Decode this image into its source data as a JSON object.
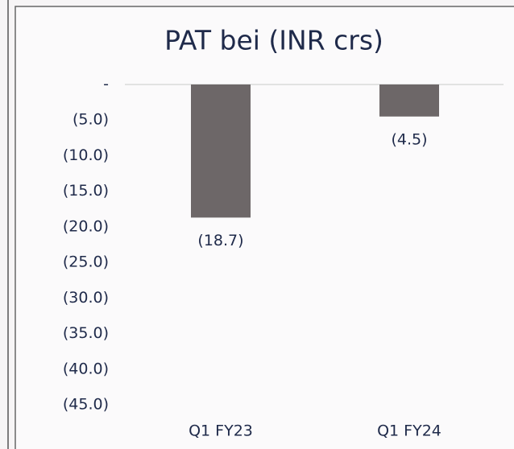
{
  "chart_data": {
    "type": "bar",
    "title": "PAT bei (INR crs)",
    "categories": [
      "Q1 FY23",
      "Q1 FY24"
    ],
    "values": [
      -18.7,
      -4.5
    ],
    "value_labels": [
      "(18.7)",
      "(4.5)"
    ],
    "color": "#6d6768",
    "ylim": [
      -45,
      0
    ],
    "yticks": [
      {
        "value": 0,
        "label": "-"
      },
      {
        "value": -5,
        "label": "(5.0)"
      },
      {
        "value": -10,
        "label": "(10.0)"
      },
      {
        "value": -15,
        "label": "(15.0)"
      },
      {
        "value": -20,
        "label": "(20.0)"
      },
      {
        "value": -25,
        "label": "(25.0)"
      },
      {
        "value": -30,
        "label": "(30.0)"
      },
      {
        "value": -35,
        "label": "(35.0)"
      },
      {
        "value": -40,
        "label": "(40.0)"
      },
      {
        "value": -45,
        "label": "(45.0)"
      }
    ]
  }
}
